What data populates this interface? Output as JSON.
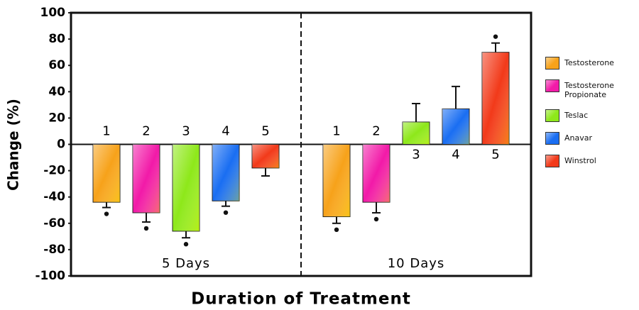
{
  "chart_data": {
    "type": "bar",
    "categories": [
      "5 Days",
      "10 Days"
    ],
    "ylabel": "Change (%)",
    "xlabel": "Duration of Treatment",
    "ylim": [
      -100,
      100
    ],
    "yticks": [
      -100,
      -80,
      -60,
      -40,
      -20,
      0,
      20,
      40,
      60,
      80,
      100
    ],
    "series": [
      {
        "name": "Testosterone",
        "label": "1",
        "color": "#f7a21a",
        "values": [
          -44,
          -55
        ],
        "errors": [
          4,
          5
        ],
        "significant": [
          true,
          true
        ]
      },
      {
        "name": "Testosterone Propionate",
        "label": "2",
        "color": "#f21aa8",
        "values": [
          -52,
          -44
        ],
        "errors": [
          7,
          8
        ],
        "significant": [
          true,
          true
        ]
      },
      {
        "name": "Teslac",
        "label": "3",
        "color": "#8ee81a",
        "values": [
          -66,
          17
        ],
        "errors": [
          5,
          14
        ],
        "significant": [
          true,
          false
        ]
      },
      {
        "name": "Anavar",
        "label": "4",
        "color": "#1a6ef2",
        "values": [
          -43,
          27
        ],
        "errors": [
          4,
          17
        ],
        "significant": [
          true,
          false
        ]
      },
      {
        "name": "Winstrol",
        "label": "5",
        "color": "#f23a1a",
        "values": [
          -18,
          70
        ],
        "errors": [
          6,
          7
        ],
        "significant": [
          false,
          true
        ]
      }
    ]
  }
}
